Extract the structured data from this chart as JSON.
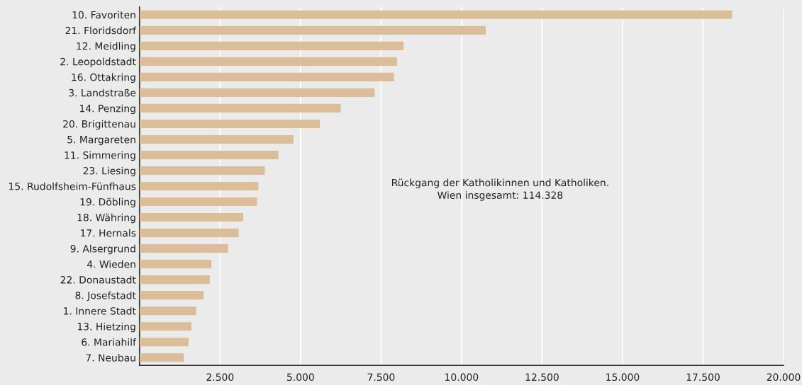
{
  "chart_data": {
    "type": "bar",
    "orientation": "horizontal",
    "categories": [
      "10. Favoriten",
      "21. Floridsdorf",
      "12. Meidling",
      "2. Leopoldstadt",
      "16. Ottakring",
      "3. Landstraße",
      "14. Penzing",
      "20. Brigittenau",
      "5. Margareten",
      "11. Simmering",
      "23. Liesing",
      "15. Rudolfsheim-Fünfhaus",
      "19. Döbling",
      "18. Währing",
      "17. Hernals",
      "9. Alsergrund",
      "4. Wieden",
      "22. Donaustadt",
      "8. Josefstadt",
      "1. Innere Stadt",
      "13. Hietzing",
      "6. Mariahilf",
      "7. Neubau"
    ],
    "values": [
      18400,
      10750,
      8200,
      8000,
      7900,
      7300,
      6250,
      5600,
      4780,
      4310,
      3890,
      3690,
      3650,
      3220,
      3080,
      2750,
      2230,
      2180,
      1990,
      1760,
      1610,
      1520,
      1370
    ],
    "color": "#dbbe99",
    "xlim": [
      0,
      20000
    ],
    "xticks": [
      {
        "value": 2500,
        "label": "2.500"
      },
      {
        "value": 5000,
        "label": "5.000"
      },
      {
        "value": 7500,
        "label": "7.500"
      },
      {
        "value": 10000,
        "label": "10.000"
      },
      {
        "value": 12500,
        "label": "12.500"
      },
      {
        "value": 15000,
        "label": "15.000"
      },
      {
        "value": 17500,
        "label": "17.500"
      },
      {
        "value": 20000,
        "label": "20.000"
      }
    ],
    "grid": "x",
    "annotations": [
      "Rückgang der Katholikinnen und Katholiken.\nWien insgesamt: 114.328"
    ]
  }
}
